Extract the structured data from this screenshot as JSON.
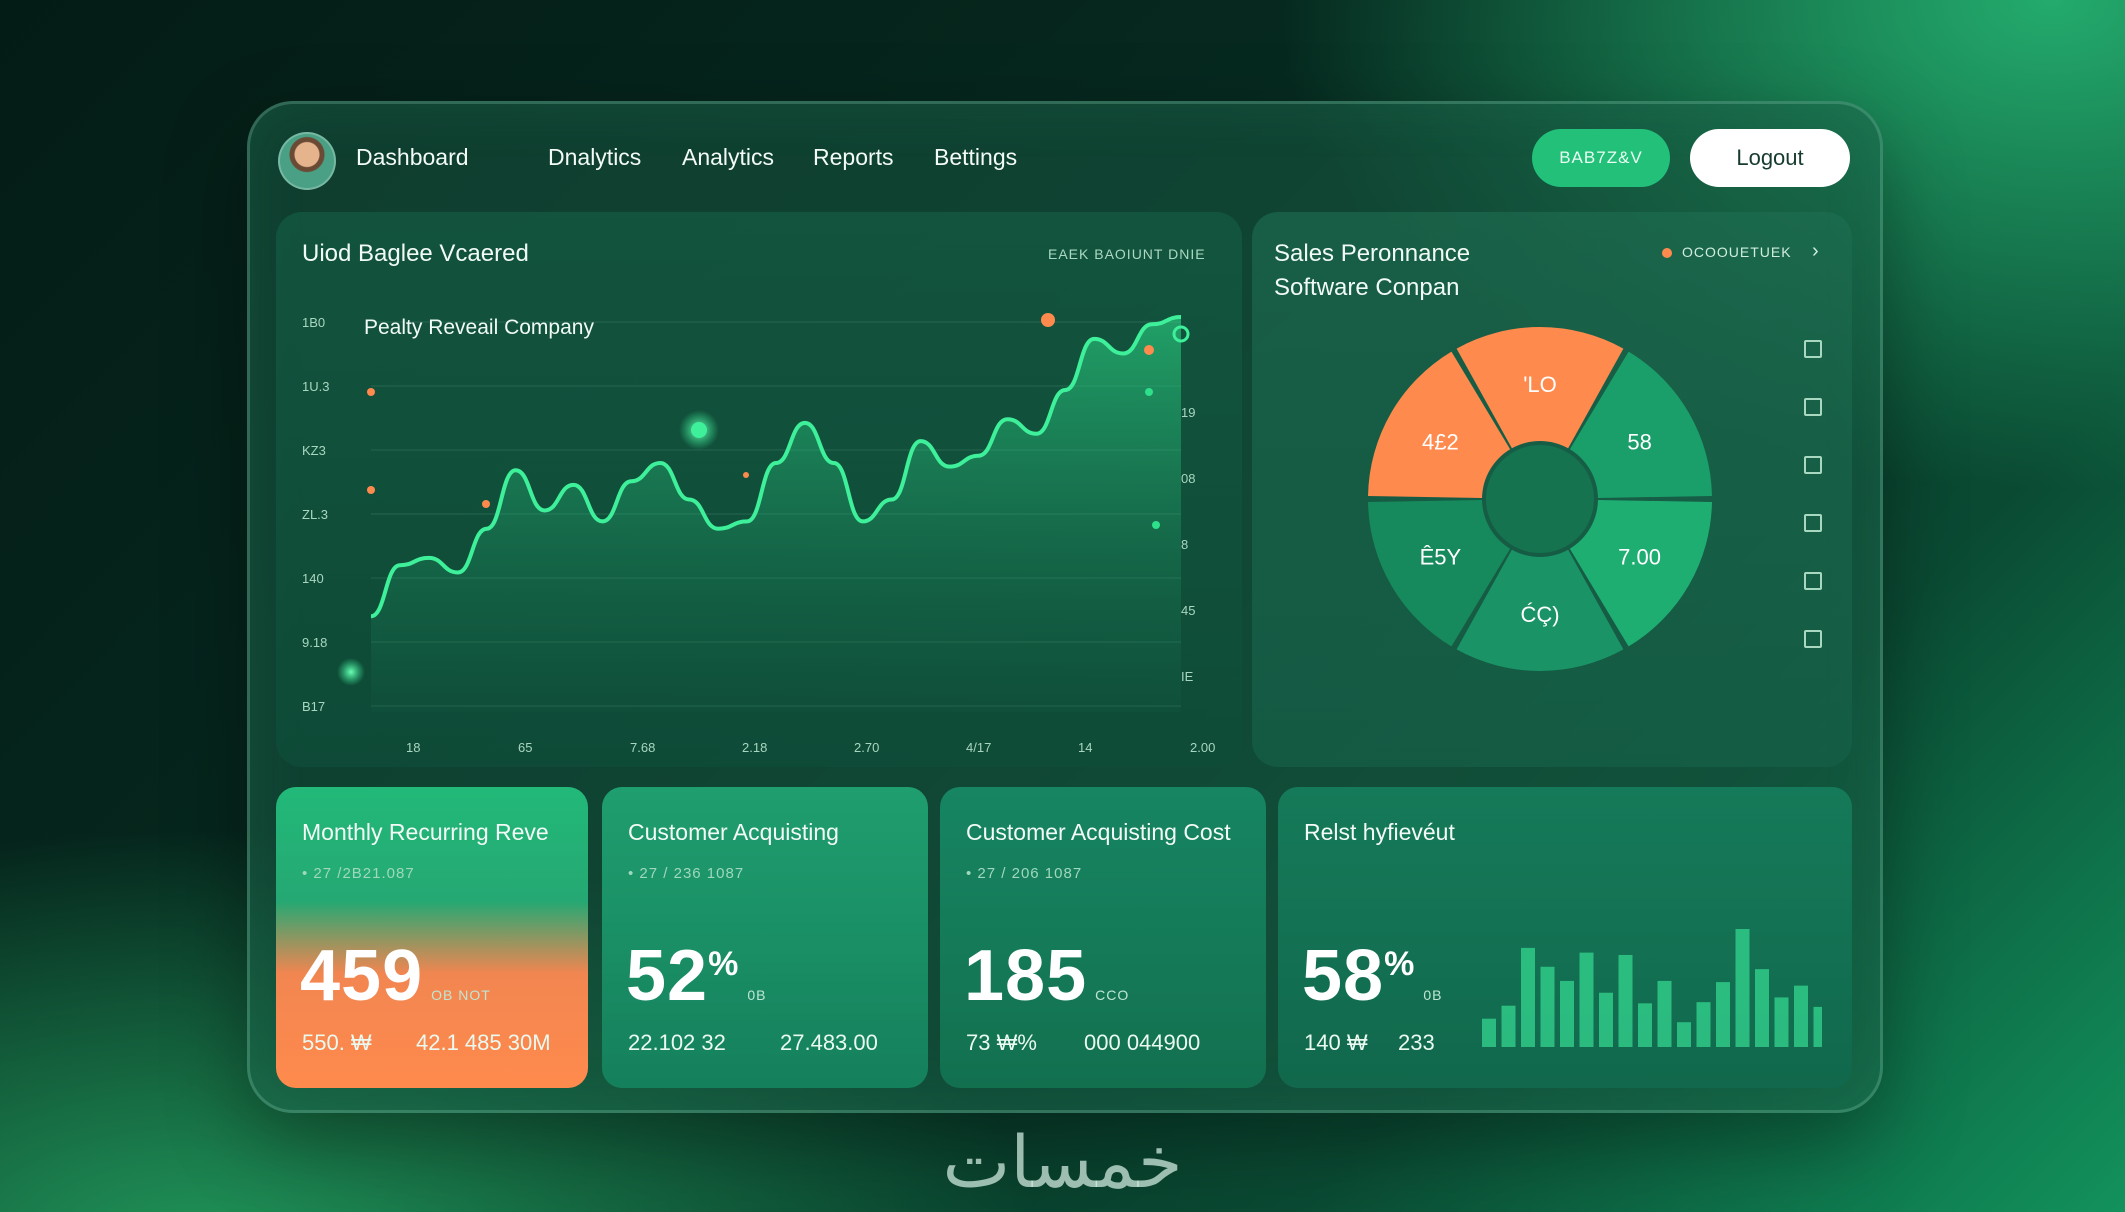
{
  "nav": {
    "brand": "Dashboard",
    "links": [
      "Dnalytics",
      "Analytics",
      "Reports",
      "Bettings"
    ],
    "badge": "BAB7Z&V",
    "logout": "Logout"
  },
  "main_chart": {
    "title": "Uiod Baglee Vcaered",
    "header_note": "EAEK BAOIUNT DNIE",
    "series_label": "Pealty Reveail Company",
    "y_left": [
      "1B0",
      "1U.3",
      "KZ3",
      "ZL.3",
      "140",
      "9.18",
      "B17"
    ],
    "y_right": [
      "19",
      "08",
      "8",
      "45",
      "IE"
    ],
    "x_ticks": [
      "18",
      "65",
      "7.68",
      "2.18",
      "2.70",
      "4/17",
      "14",
      "2.00"
    ]
  },
  "chart_data": {
    "type": "area",
    "title": "Pealty Reveail Company",
    "xlabel": "",
    "ylabel": "",
    "x_ticks": [
      "18",
      "65",
      "7.68",
      "2.18",
      "2.70",
      "4/17",
      "14",
      "2.00"
    ],
    "series": [
      {
        "values": [
          0.18,
          0.32,
          0.34,
          0.3,
          0.42,
          0.58,
          0.47,
          0.54,
          0.44,
          0.55,
          0.6,
          0.5,
          0.42,
          0.44,
          0.6,
          0.71,
          0.6,
          0.44,
          0.5,
          0.66,
          0.59,
          0.62,
          0.72,
          0.68,
          0.8,
          0.94,
          0.9,
          0.98,
          1.0
        ]
      }
    ],
    "grid": true,
    "color": "#2ee08a",
    "accent": "#ff8a4d"
  },
  "sales": {
    "title_line1": "Sales Peronnance",
    "title_line2": "Software Conpan",
    "legend": "OCOOUETUEK",
    "slices": [
      {
        "label": "'LO",
        "value": 1,
        "color": "#ff8a4d"
      },
      {
        "label": "58",
        "value": 1,
        "color": "#1a9e6a"
      },
      {
        "label": "7.00",
        "value": 1,
        "color": "#1fae72"
      },
      {
        "label": "ĆÇ)",
        "value": 1,
        "color": "#1a9466"
      },
      {
        "label": "Ê5Y",
        "value": 1,
        "color": "#178a5d"
      },
      {
        "label": "4£2",
        "value": 1,
        "color": "#ff8a4d"
      }
    ]
  },
  "cards": [
    {
      "title": "Monthly Recurring Reve",
      "sub": "27 /2B21.087",
      "value": "459",
      "unit": "",
      "tiny": "OB NOT",
      "foot_left": "550. ₩",
      "foot_right": "42.1 485 30M"
    },
    {
      "title": "Customer Acquisting",
      "sub": "27 / 236 1087",
      "value": "52",
      "unit": "%",
      "tiny": "0B",
      "foot_left": "22.102 32",
      "foot_right": "27.483.00"
    },
    {
      "title": "Customer Acquisting Cost",
      "sub": "27 / 206 1087",
      "value": "185",
      "unit": "",
      "tiny": "CCO",
      "foot_left": "73 ₩%",
      "foot_right": "000 044900"
    },
    {
      "title": "Relst hyfievéut",
      "sub": "",
      "value": "58",
      "unit": "%",
      "tiny": "0B",
      "foot_left": "140 ₩",
      "foot_right": "233",
      "bars": [
        0.24,
        0.35,
        0.84,
        0.68,
        0.56,
        0.8,
        0.46,
        0.78,
        0.37,
        0.56,
        0.21,
        0.38,
        0.55,
        1.0,
        0.66,
        0.42,
        0.52,
        0.34
      ]
    }
  ],
  "watermark": "خمسات"
}
